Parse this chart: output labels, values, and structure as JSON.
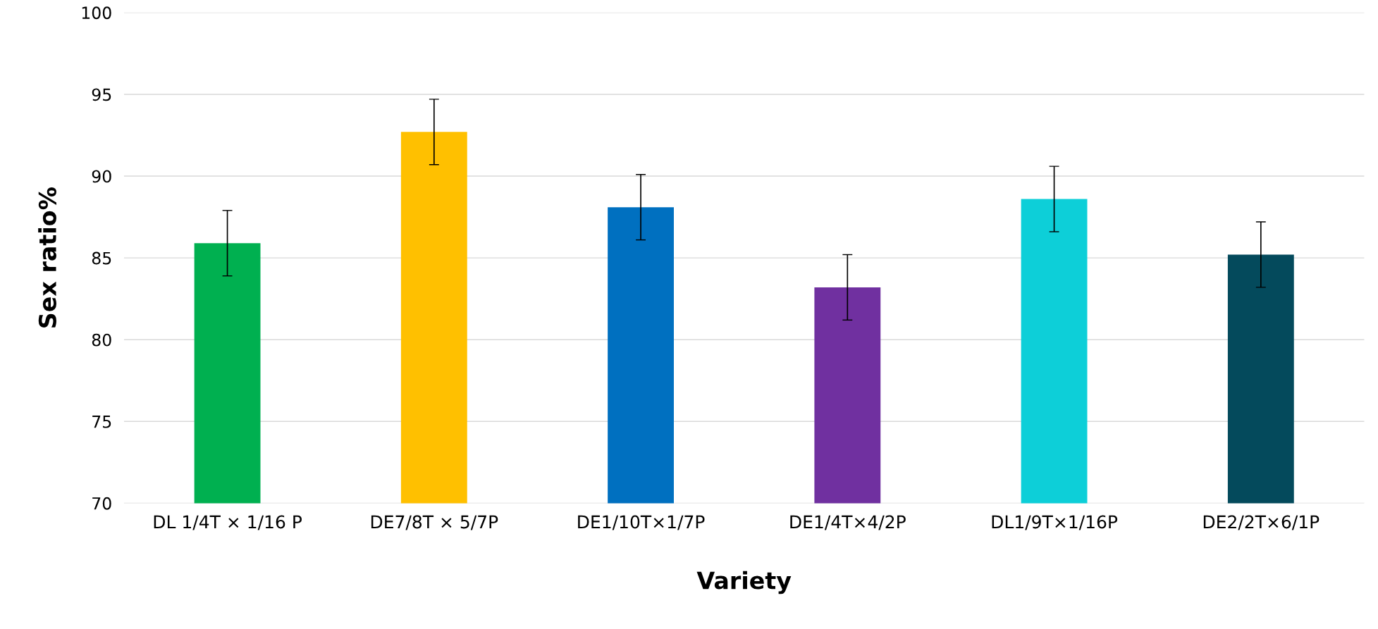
{
  "chart_data": {
    "type": "bar",
    "xlabel": "Variety",
    "ylabel": "Sex ratio%",
    "categories": [
      "DL 1/4T × 1/16 P",
      "DE7/8T × 5/7P",
      "DE1/10T×1/7P",
      "DE1/4T×4/2P",
      "DL1/9T×1/16P",
      "DE2/2T×6/1P"
    ],
    "values": [
      85.9,
      92.7,
      88.1,
      83.2,
      88.6,
      85.2
    ],
    "errors": [
      2,
      2,
      2,
      2,
      2,
      2
    ],
    "colors": [
      "#00b050",
      "#ffc000",
      "#0070c0",
      "#7030a0",
      "#0dcfd8",
      "#044a5c"
    ],
    "ylim": [
      70,
      100
    ],
    "yticks": [
      70,
      75,
      80,
      85,
      90,
      95,
      100
    ],
    "grid": "y"
  }
}
